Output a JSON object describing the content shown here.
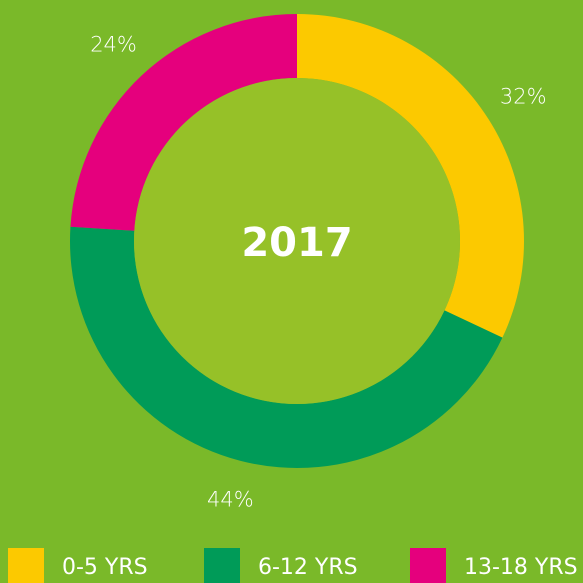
{
  "chart_data": {
    "type": "donut",
    "title": "2017",
    "categories": [
      "0-5 YRS",
      "6-12 YRS",
      "13-18 YRS"
    ],
    "values": [
      32,
      44,
      24
    ],
    "value_labels": [
      "32%",
      "44%",
      "24%"
    ],
    "colors": [
      "#fcc900",
      "#009b58",
      "#e5007d"
    ],
    "legend": "bottom"
  }
}
